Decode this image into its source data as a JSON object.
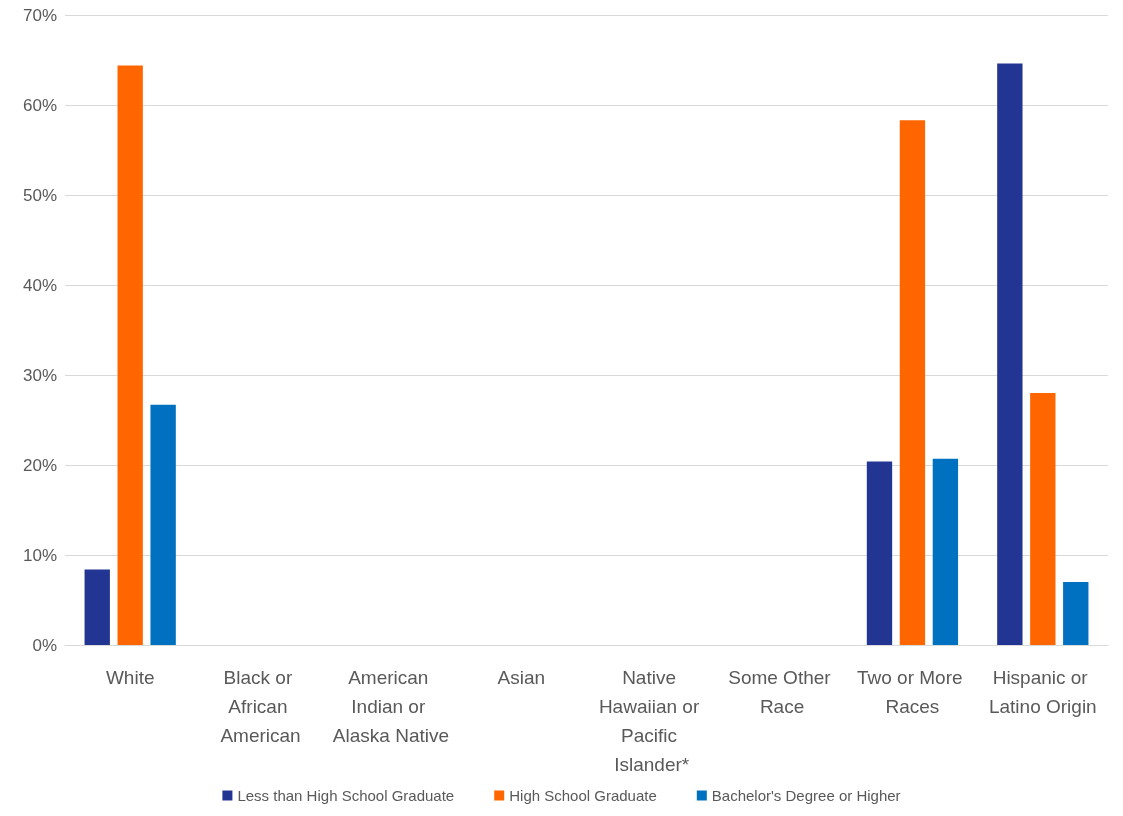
{
  "chart_data": {
    "type": "bar",
    "categories": [
      "White",
      "Black or African American",
      "American Indian or Alaska Native",
      "Asian",
      "Native Hawaiian or Pacific Islander*",
      "Some Other Race",
      "Two or More Races",
      "Hispanic or Latino Origin"
    ],
    "series": [
      {
        "name": "Less than High School Graduate",
        "color": "#233592",
        "values": [
          8.4,
          null,
          null,
          null,
          null,
          null,
          20.4,
          64.6
        ]
      },
      {
        "name": "High School Graduate",
        "color": "#ff6600",
        "values": [
          64.4,
          null,
          null,
          null,
          null,
          null,
          58.3,
          28.0
        ]
      },
      {
        "name": "Bachelor's Degree or Higher",
        "color": "#0070c0",
        "values": [
          26.7,
          null,
          null,
          null,
          null,
          null,
          20.7,
          7.0
        ]
      }
    ],
    "ylim": [
      0,
      70
    ],
    "yticks": [
      {
        "value": 0,
        "label": "0%"
      },
      {
        "value": 10,
        "label": "10%"
      },
      {
        "value": 20,
        "label": "20%"
      },
      {
        "value": 30,
        "label": "30%"
      },
      {
        "value": 40,
        "label": "40%"
      },
      {
        "value": 50,
        "label": "50%"
      },
      {
        "value": 60,
        "label": "60%"
      },
      {
        "value": 70,
        "label": "70%"
      }
    ],
    "grid": "y",
    "legend": "bottom"
  }
}
